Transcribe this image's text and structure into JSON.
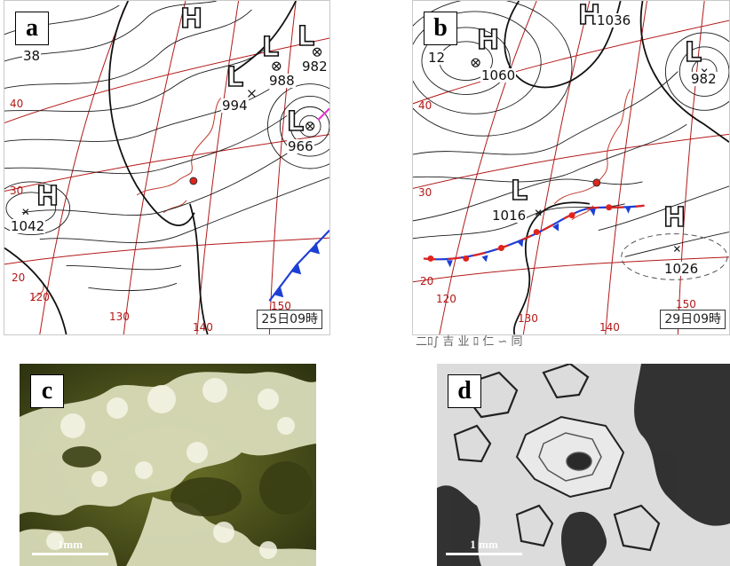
{
  "panels": {
    "a": {
      "label": "a",
      "timestamp": "25日09時",
      "lat_labels": [
        "40",
        "30",
        "20"
      ],
      "lon_labels": [
        "120",
        "130",
        "140",
        "150"
      ],
      "pressure_labels": [
        "994",
        "988",
        "982",
        "966",
        "1042"
      ],
      "partial_labels": [
        "38"
      ],
      "high_symbol": "H",
      "low_symbol": "L"
    },
    "b": {
      "label": "b",
      "timestamp": "29日09時",
      "lat_labels": [
        "40",
        "30",
        "20"
      ],
      "lon_labels": [
        "120",
        "130",
        "140",
        "150"
      ],
      "pressure_labels": [
        "1036",
        "1060",
        "982",
        "1016",
        "1026"
      ],
      "partial_labels": [
        "12"
      ],
      "high_symbol": "H",
      "low_symbol": "L",
      "caption_fragment": "二ﾛ∫ 吉 业 ﾛ 仁 ∽ 同"
    },
    "c": {
      "label": "c",
      "scale_label": "1mm"
    },
    "d": {
      "label": "d",
      "scale_label": "1 mm"
    }
  },
  "colors": {
    "isobar": "#1a1a1a",
    "gridline": "#b21818",
    "coastline": "#c0392b",
    "cold_front": "#1d3fd6",
    "warm_front": "#e0241b",
    "occluded": "#e637d0",
    "photo_c_bg": "#535a1e",
    "photo_d_bg": "#dcdcdc"
  }
}
